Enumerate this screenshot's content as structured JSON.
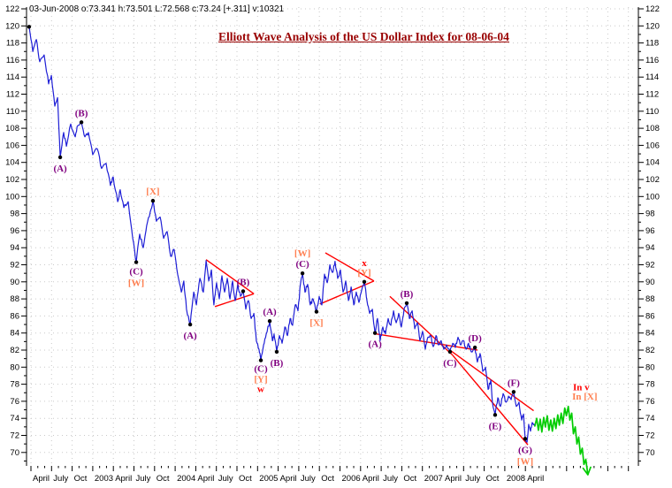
{
  "header": {
    "info_line": "03-Jun-2008  o:73.341  h:73.501  L:72.568  c:73.24  [+.311]  v:10321"
  },
  "colors": {
    "price": "#1f1fd6",
    "forecast": "#00cc00",
    "trend": "#ff0000",
    "purple": "#800080",
    "orange": "#ff7f50",
    "red": "#ff0000",
    "title": "#990000",
    "axis": "#000000",
    "grid": "#c9c9c9",
    "dot": "#000000"
  },
  "chart_data": {
    "type": "line",
    "title": "Elliott Wave Analysis of the US Dollar Index for 08-06-04",
    "ylabel": "US Dollar Index",
    "grid": true,
    "y_axis": {
      "label_min": 70,
      "label_max": 122,
      "tick_step": 2,
      "minor_step": 1,
      "sides": "both",
      "ylim": [
        68.4,
        122.3
      ]
    },
    "x_axis": {
      "tick_labels": [
        "April",
        "July",
        "Oct",
        "2003",
        "April",
        "July",
        "Oct",
        "2004",
        "April",
        "July",
        "Oct",
        "2005",
        "April",
        "July",
        "Oct",
        "2006",
        "April",
        "July",
        "Oct",
        "2007",
        "April",
        "July",
        "Oct",
        "2008",
        "April"
      ],
      "minor_ticks_per_quarter": 3,
      "extra_unlabeled_quarters": 5
    },
    "series": [
      {
        "name": "us-dollar-index-daily-close",
        "color": "#1f1fd6",
        "jitter": true,
        "width": 1.2,
        "points": [
          [
            -0.09,
            119.9
          ],
          [
            0.09,
            117.0
          ],
          [
            0.26,
            118.4
          ],
          [
            0.43,
            115.8
          ],
          [
            0.64,
            116.6
          ],
          [
            0.86,
            113.2
          ],
          [
            0.99,
            114.2
          ],
          [
            1.16,
            110.6
          ],
          [
            1.29,
            111.6
          ],
          [
            1.42,
            104.6
          ],
          [
            1.59,
            107.5
          ],
          [
            1.72,
            105.9
          ],
          [
            1.93,
            108.5
          ],
          [
            2.15,
            107.0
          ],
          [
            2.27,
            108.3
          ],
          [
            2.45,
            108.7
          ],
          [
            2.62,
            107.0
          ],
          [
            2.79,
            107.5
          ],
          [
            3.0,
            104.9
          ],
          [
            3.22,
            105.6
          ],
          [
            3.43,
            103.3
          ],
          [
            3.65,
            103.9
          ],
          [
            3.86,
            101.3
          ],
          [
            3.99,
            102.3
          ],
          [
            4.21,
            99.4
          ],
          [
            4.33,
            100.8
          ],
          [
            4.51,
            98.7
          ],
          [
            4.72,
            99.4
          ],
          [
            4.94,
            95.1
          ],
          [
            5.11,
            92.3
          ],
          [
            5.28,
            95.6
          ],
          [
            5.45,
            94.0
          ],
          [
            5.62,
            96.6
          ],
          [
            5.79,
            98.2
          ],
          [
            5.92,
            99.5
          ],
          [
            6.09,
            97.1
          ],
          [
            6.27,
            97.6
          ],
          [
            6.44,
            95.1
          ],
          [
            6.61,
            95.9
          ],
          [
            6.78,
            93.0
          ],
          [
            6.95,
            93.8
          ],
          [
            7.12,
            90.9
          ],
          [
            7.3,
            88.8
          ],
          [
            7.42,
            90.1
          ],
          [
            7.55,
            86.8
          ],
          [
            7.73,
            85.0
          ],
          [
            7.9,
            88.8
          ],
          [
            8.03,
            87.3
          ],
          [
            8.2,
            90.4
          ],
          [
            8.37,
            88.8
          ],
          [
            8.5,
            92.5
          ],
          [
            8.63,
            90.1
          ],
          [
            8.76,
            91.4
          ],
          [
            8.88,
            87.3
          ],
          [
            9.01,
            89.9
          ],
          [
            9.14,
            88.0
          ],
          [
            9.27,
            90.7
          ],
          [
            9.4,
            88.8
          ],
          [
            9.53,
            90.4
          ],
          [
            9.66,
            88.0
          ],
          [
            9.79,
            90.1
          ],
          [
            9.91,
            87.8
          ],
          [
            10.04,
            89.7
          ],
          [
            10.17,
            88.3
          ],
          [
            10.3,
            88.9
          ],
          [
            10.43,
            86.8
          ],
          [
            10.56,
            87.8
          ],
          [
            10.69,
            85.7
          ],
          [
            10.82,
            86.3
          ],
          [
            10.94,
            83.1
          ],
          [
            11.07,
            82.1
          ],
          [
            11.16,
            80.8
          ],
          [
            11.29,
            82.6
          ],
          [
            11.42,
            83.9
          ],
          [
            11.59,
            85.4
          ],
          [
            11.72,
            83.1
          ],
          [
            11.8,
            83.9
          ],
          [
            11.93,
            81.8
          ],
          [
            12.06,
            83.7
          ],
          [
            12.19,
            82.8
          ],
          [
            12.32,
            84.7
          ],
          [
            12.45,
            83.7
          ],
          [
            12.58,
            85.7
          ],
          [
            12.7,
            84.9
          ],
          [
            12.83,
            87.3
          ],
          [
            12.96,
            86.6
          ],
          [
            13.09,
            89.9
          ],
          [
            13.18,
            91.0
          ],
          [
            13.3,
            88.8
          ],
          [
            13.43,
            89.7
          ],
          [
            13.56,
            87.3
          ],
          [
            13.69,
            88.0
          ],
          [
            13.86,
            86.5
          ],
          [
            13.99,
            88.3
          ],
          [
            14.12,
            87.3
          ],
          [
            14.25,
            90.9
          ],
          [
            14.38,
            89.9
          ],
          [
            14.51,
            92.0
          ],
          [
            14.64,
            91.1
          ],
          [
            14.76,
            92.4
          ],
          [
            14.89,
            90.4
          ],
          [
            15.02,
            91.4
          ],
          [
            15.15,
            88.8
          ],
          [
            15.28,
            90.1
          ],
          [
            15.41,
            87.8
          ],
          [
            15.54,
            89.4
          ],
          [
            15.67,
            87.3
          ],
          [
            15.79,
            88.8
          ],
          [
            15.92,
            87.6
          ],
          [
            16.05,
            89.0
          ],
          [
            16.18,
            90.0
          ],
          [
            16.31,
            87.8
          ],
          [
            16.44,
            86.3
          ],
          [
            16.57,
            86.8
          ],
          [
            16.7,
            84.0
          ],
          [
            16.82,
            85.7
          ],
          [
            16.95,
            83.1
          ],
          [
            17.08,
            84.7
          ],
          [
            17.21,
            83.9
          ],
          [
            17.34,
            85.7
          ],
          [
            17.47,
            84.9
          ],
          [
            17.6,
            86.6
          ],
          [
            17.73,
            85.2
          ],
          [
            17.85,
            86.3
          ],
          [
            17.98,
            84.7
          ],
          [
            18.11,
            86.8
          ],
          [
            18.24,
            87.5
          ],
          [
            18.37,
            85.7
          ],
          [
            18.5,
            86.6
          ],
          [
            18.63,
            84.5
          ],
          [
            18.76,
            85.2
          ],
          [
            18.88,
            83.1
          ],
          [
            19.01,
            84.2
          ],
          [
            19.14,
            82.1
          ],
          [
            19.27,
            83.5
          ],
          [
            19.4,
            83.7
          ],
          [
            19.53,
            82.4
          ],
          [
            19.66,
            83.7
          ],
          [
            19.79,
            82.6
          ],
          [
            19.91,
            83.1
          ],
          [
            20.04,
            82.1
          ],
          [
            20.17,
            82.6
          ],
          [
            20.34,
            81.8
          ],
          [
            20.47,
            82.8
          ],
          [
            20.6,
            82.3
          ],
          [
            20.73,
            83.5
          ],
          [
            20.86,
            82.6
          ],
          [
            20.99,
            83.1
          ],
          [
            21.12,
            82.1
          ],
          [
            21.24,
            82.8
          ],
          [
            21.37,
            81.8
          ],
          [
            21.55,
            82.3
          ],
          [
            21.67,
            80.6
          ],
          [
            21.8,
            81.6
          ],
          [
            21.93,
            79.5
          ],
          [
            22.06,
            80.0
          ],
          [
            22.19,
            77.4
          ],
          [
            22.32,
            78.5
          ],
          [
            22.4,
            75.9
          ],
          [
            22.53,
            74.4
          ],
          [
            22.66,
            76.4
          ],
          [
            22.79,
            75.4
          ],
          [
            22.92,
            76.9
          ],
          [
            23.05,
            75.9
          ],
          [
            23.18,
            76.6
          ],
          [
            23.31,
            76.2
          ],
          [
            23.43,
            77.1
          ],
          [
            23.56,
            75.4
          ],
          [
            23.69,
            75.9
          ],
          [
            23.82,
            73.8
          ],
          [
            23.91,
            74.5
          ],
          [
            23.99,
            71.6
          ],
          [
            24.08,
            71.2
          ],
          [
            24.16,
            73.3
          ],
          [
            24.25,
            72.5
          ],
          [
            24.33,
            73.5
          ],
          [
            24.46,
            73.1
          ]
        ]
      },
      {
        "name": "forecast-path",
        "color": "#00cc00",
        "jitter": false,
        "width": 1.7,
        "arrow_end": true,
        "points": [
          [
            24.46,
            73.1
          ],
          [
            24.55,
            74.0
          ],
          [
            24.63,
            72.6
          ],
          [
            24.72,
            73.9
          ],
          [
            24.8,
            72.4
          ],
          [
            24.89,
            74.1
          ],
          [
            24.97,
            73.0
          ],
          [
            25.06,
            74.3
          ],
          [
            25.14,
            72.6
          ],
          [
            25.23,
            73.8
          ],
          [
            25.31,
            72.5
          ],
          [
            25.4,
            74.0
          ],
          [
            25.48,
            72.8
          ],
          [
            25.57,
            74.4
          ],
          [
            25.65,
            73.2
          ],
          [
            25.74,
            74.6
          ],
          [
            25.82,
            73.4
          ],
          [
            25.91,
            75.2
          ],
          [
            25.99,
            74.3
          ],
          [
            26.08,
            75.4
          ],
          [
            26.16,
            73.8
          ],
          [
            26.25,
            74.6
          ],
          [
            26.33,
            72.2
          ],
          [
            26.42,
            73.0
          ],
          [
            26.5,
            71.0
          ],
          [
            26.59,
            71.8
          ],
          [
            26.67,
            69.8
          ],
          [
            26.76,
            70.5
          ],
          [
            26.84,
            68.6
          ],
          [
            26.93,
            69.2
          ],
          [
            27.03,
            67.4
          ]
        ]
      }
    ],
    "wave_markers": [
      {
        "q": -0.09,
        "v": 119.9,
        "labels": []
      },
      {
        "q": 1.42,
        "v": 104.6,
        "labels": [
          {
            "t": "(A)",
            "c": "purple",
            "dy": 16
          }
        ]
      },
      {
        "q": 2.45,
        "v": 108.7,
        "labels": [
          {
            "t": "(B)",
            "c": "purple",
            "dy": -7
          }
        ]
      },
      {
        "q": 5.11,
        "v": 92.3,
        "labels": [
          {
            "t": "(C)",
            "c": "purple",
            "dy": 14
          },
          {
            "t": "[W]",
            "c": "orange",
            "dy": 27
          }
        ]
      },
      {
        "q": 5.92,
        "v": 99.5,
        "labels": [
          {
            "t": "[X]",
            "c": "orange",
            "dy": -7
          }
        ]
      },
      {
        "q": 7.73,
        "v": 85.0,
        "labels": [
          {
            "t": "(A)",
            "c": "purple",
            "dy": 16
          }
        ]
      },
      {
        "q": 10.3,
        "v": 88.9,
        "labels": [
          {
            "t": "(B)",
            "c": "purple",
            "dy": -7
          }
        ]
      },
      {
        "q": 11.16,
        "v": 80.8,
        "labels": [
          {
            "t": "(C)",
            "c": "purple",
            "dy": 13
          },
          {
            "t": "[Y]",
            "c": "orange",
            "dy": 25
          },
          {
            "t": "w",
            "c": "red",
            "dy": 36
          }
        ]
      },
      {
        "q": 11.59,
        "v": 85.4,
        "labels": [
          {
            "t": "(A)",
            "c": "purple",
            "dy": -7
          }
        ]
      },
      {
        "q": 11.93,
        "v": 81.8,
        "labels": [
          {
            "t": "(B)",
            "c": "purple",
            "dy": 16
          }
        ]
      },
      {
        "q": 13.18,
        "v": 91.0,
        "labels": [
          {
            "t": "(C)",
            "c": "purple",
            "dy": -7
          },
          {
            "t": "[W]",
            "c": "orange",
            "dy": -19
          }
        ]
      },
      {
        "q": 13.86,
        "v": 86.5,
        "labels": [
          {
            "t": "[X]",
            "c": "orange",
            "dy": 16
          }
        ]
      },
      {
        "q": 16.18,
        "v": 90.0,
        "labels": [
          {
            "t": "[Y]",
            "c": "orange",
            "dy": -7
          },
          {
            "t": "x",
            "c": "red",
            "dy": -18
          }
        ]
      },
      {
        "q": 16.7,
        "v": 84.0,
        "labels": [
          {
            "t": "(A)",
            "c": "purple",
            "dy": 16
          }
        ]
      },
      {
        "q": 18.24,
        "v": 87.5,
        "labels": [
          {
            "t": "(B)",
            "c": "purple",
            "dy": -7
          }
        ]
      },
      {
        "q": 20.34,
        "v": 81.8,
        "labels": [
          {
            "t": "(C)",
            "c": "purple",
            "dy": 16
          }
        ]
      },
      {
        "q": 21.55,
        "v": 82.3,
        "labels": [
          {
            "t": "(D)",
            "c": "purple",
            "dy": -7
          }
        ]
      },
      {
        "q": 22.53,
        "v": 74.4,
        "labels": [
          {
            "t": "(E)",
            "c": "purple",
            "dy": 16
          }
        ]
      },
      {
        "q": 23.43,
        "v": 77.1,
        "labels": [
          {
            "t": "(F)",
            "c": "purple",
            "dy": -7
          }
        ]
      },
      {
        "q": 23.99,
        "v": 71.6,
        "labels": [
          {
            "t": "(G)",
            "c": "purple",
            "dy": 16
          },
          {
            "t": "[W]",
            "c": "orange",
            "dy": 29
          }
        ]
      }
    ],
    "trend_lines": [
      [
        8.5,
        92.6,
        10.82,
        88.6
      ],
      [
        8.93,
        87.1,
        10.82,
        88.6
      ],
      [
        14.29,
        93.4,
        16.65,
        90.1
      ],
      [
        14.03,
        87.4,
        16.65,
        90.1
      ],
      [
        16.74,
        83.9,
        21.67,
        82.0
      ],
      [
        17.42,
        88.3,
        20.47,
        81.4
      ],
      [
        20.39,
        81.9,
        24.4,
        74.9
      ],
      [
        20.47,
        81.4,
        24.12,
        70.9
      ]
    ],
    "annotations": [
      {
        "q": 26.31,
        "v": 77.3,
        "text": "In v",
        "c": "red"
      },
      {
        "q": 26.27,
        "v": 76.2,
        "text": "In [X]",
        "c": "orange"
      }
    ]
  }
}
